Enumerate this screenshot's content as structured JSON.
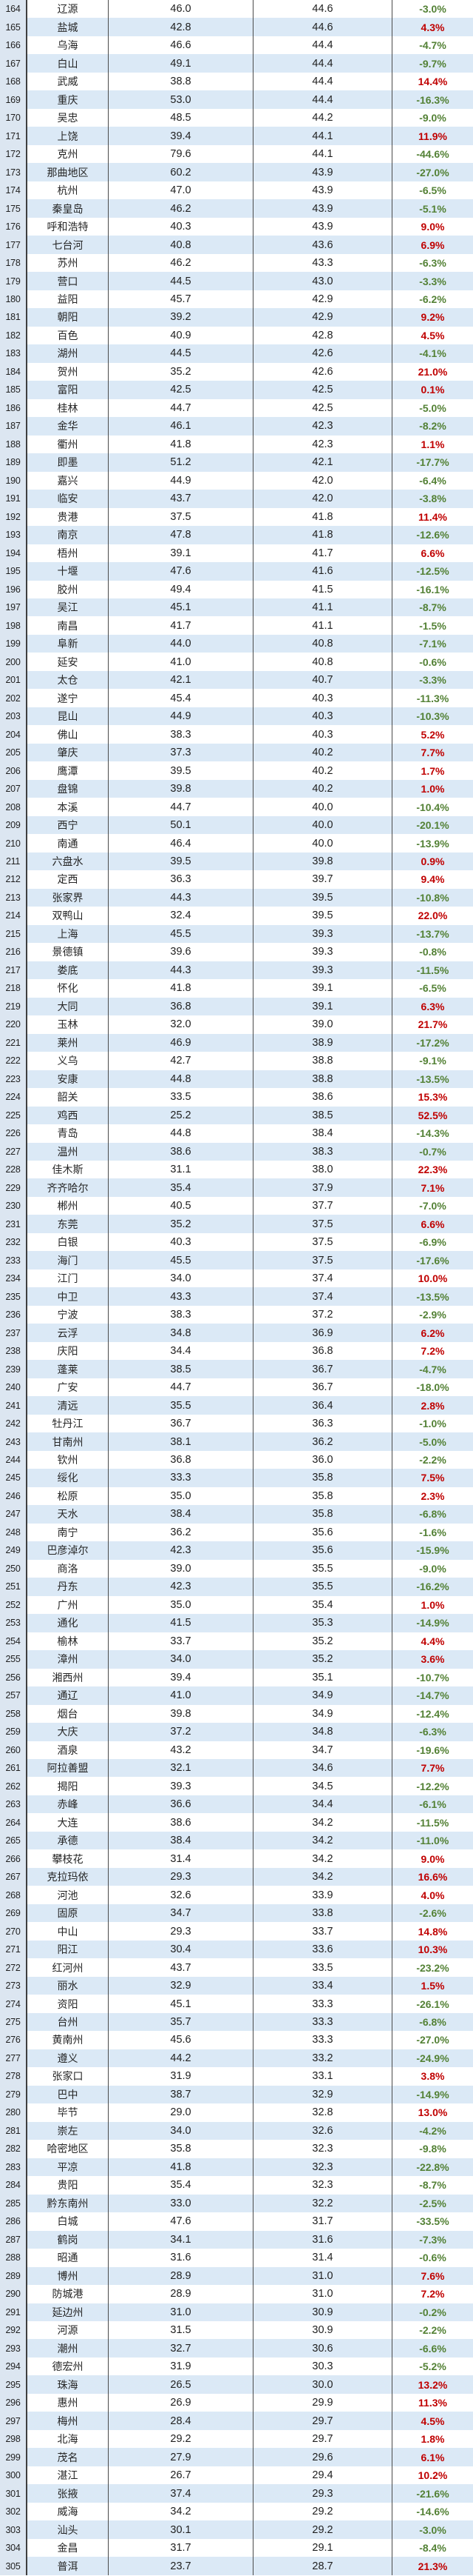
{
  "colors": {
    "positive_change": "#c00000",
    "negative_change": "#538135",
    "band_fill": "#dbe9f6",
    "rank_column_fill": "#dce6f1",
    "border": "#3f3f3f",
    "text": "#1f1f1f"
  },
  "chart_data": {
    "type": "table",
    "columns": [
      "rank",
      "city",
      "value_current",
      "value_reference",
      "change_pct"
    ],
    "legend": "green = negative change, red bold = positive change; banded rows alternate white / light blue; leftmost rank column frozen with blue fill",
    "rows": [
      [
        164,
        "辽源",
        "46.0",
        "44.6",
        "-3.0%"
      ],
      [
        165,
        "盐城",
        "42.8",
        "44.6",
        "4.3%"
      ],
      [
        166,
        "乌海",
        "46.6",
        "44.4",
        "-4.7%"
      ],
      [
        167,
        "白山",
        "49.1",
        "44.4",
        "-9.7%"
      ],
      [
        168,
        "武威",
        "38.8",
        "44.4",
        "14.4%"
      ],
      [
        169,
        "重庆",
        "53.0",
        "44.4",
        "-16.3%"
      ],
      [
        170,
        "吴忠",
        "48.5",
        "44.2",
        "-9.0%"
      ],
      [
        171,
        "上饶",
        "39.4",
        "44.1",
        "11.9%"
      ],
      [
        172,
        "克州",
        "79.6",
        "44.1",
        "-44.6%"
      ],
      [
        173,
        "那曲地区",
        "60.2",
        "43.9",
        "-27.0%"
      ],
      [
        174,
        "杭州",
        "47.0",
        "43.9",
        "-6.5%"
      ],
      [
        175,
        "秦皇岛",
        "46.2",
        "43.9",
        "-5.1%"
      ],
      [
        176,
        "呼和浩特",
        "40.3",
        "43.9",
        "9.0%"
      ],
      [
        177,
        "七台河",
        "40.8",
        "43.6",
        "6.9%"
      ],
      [
        178,
        "苏州",
        "46.2",
        "43.3",
        "-6.3%"
      ],
      [
        179,
        "营口",
        "44.5",
        "43.0",
        "-3.3%"
      ],
      [
        180,
        "益阳",
        "45.7",
        "42.9",
        "-6.2%"
      ],
      [
        181,
        "朝阳",
        "39.2",
        "42.9",
        "9.2%"
      ],
      [
        182,
        "百色",
        "40.9",
        "42.8",
        "4.5%"
      ],
      [
        183,
        "湖州",
        "44.5",
        "42.6",
        "-4.1%"
      ],
      [
        184,
        "贺州",
        "35.2",
        "42.6",
        "21.0%"
      ],
      [
        185,
        "富阳",
        "42.5",
        "42.5",
        "0.1%"
      ],
      [
        186,
        "桂林",
        "44.7",
        "42.5",
        "-5.0%"
      ],
      [
        187,
        "金华",
        "46.1",
        "42.3",
        "-8.2%"
      ],
      [
        188,
        "衢州",
        "41.8",
        "42.3",
        "1.1%"
      ],
      [
        189,
        "即墨",
        "51.2",
        "42.1",
        "-17.7%"
      ],
      [
        190,
        "嘉兴",
        "44.9",
        "42.0",
        "-6.4%"
      ],
      [
        191,
        "临安",
        "43.7",
        "42.0",
        "-3.8%"
      ],
      [
        192,
        "贵港",
        "37.5",
        "41.8",
        "11.4%"
      ],
      [
        193,
        "南京",
        "47.8",
        "41.8",
        "-12.6%"
      ],
      [
        194,
        "梧州",
        "39.1",
        "41.7",
        "6.6%"
      ],
      [
        195,
        "十堰",
        "47.6",
        "41.6",
        "-12.5%"
      ],
      [
        196,
        "胶州",
        "49.4",
        "41.5",
        "-16.1%"
      ],
      [
        197,
        "吴江",
        "45.1",
        "41.1",
        "-8.7%"
      ],
      [
        198,
        "南昌",
        "41.7",
        "41.1",
        "-1.5%"
      ],
      [
        199,
        "阜新",
        "44.0",
        "40.8",
        "-7.1%"
      ],
      [
        200,
        "延安",
        "41.0",
        "40.8",
        "-0.6%"
      ],
      [
        201,
        "太仓",
        "42.1",
        "40.7",
        "-3.3%"
      ],
      [
        202,
        "遂宁",
        "45.4",
        "40.3",
        "-11.3%"
      ],
      [
        203,
        "昆山",
        "44.9",
        "40.3",
        "-10.3%"
      ],
      [
        204,
        "佛山",
        "38.3",
        "40.3",
        "5.2%"
      ],
      [
        205,
        "肇庆",
        "37.3",
        "40.2",
        "7.7%"
      ],
      [
        206,
        "鹰潭",
        "39.5",
        "40.2",
        "1.7%"
      ],
      [
        207,
        "盘锦",
        "39.8",
        "40.2",
        "1.0%"
      ],
      [
        208,
        "本溪",
        "44.7",
        "40.0",
        "-10.4%"
      ],
      [
        209,
        "西宁",
        "50.1",
        "40.0",
        "-20.1%"
      ],
      [
        210,
        "南通",
        "46.4",
        "40.0",
        "-13.9%"
      ],
      [
        211,
        "六盘水",
        "39.5",
        "39.8",
        "0.9%"
      ],
      [
        212,
        "定西",
        "36.3",
        "39.7",
        "9.4%"
      ],
      [
        213,
        "张家界",
        "44.3",
        "39.5",
        "-10.8%"
      ],
      [
        214,
        "双鸭山",
        "32.4",
        "39.5",
        "22.0%"
      ],
      [
        215,
        "上海",
        "45.5",
        "39.3",
        "-13.7%"
      ],
      [
        216,
        "景德镇",
        "39.6",
        "39.3",
        "-0.8%"
      ],
      [
        217,
        "娄底",
        "44.3",
        "39.3",
        "-11.5%"
      ],
      [
        218,
        "怀化",
        "41.8",
        "39.1",
        "-6.5%"
      ],
      [
        219,
        "大同",
        "36.8",
        "39.1",
        "6.3%"
      ],
      [
        220,
        "玉林",
        "32.0",
        "39.0",
        "21.7%"
      ],
      [
        221,
        "莱州",
        "46.9",
        "38.9",
        "-17.2%"
      ],
      [
        222,
        "义乌",
        "42.7",
        "38.8",
        "-9.1%"
      ],
      [
        223,
        "安康",
        "44.8",
        "38.8",
        "-13.5%"
      ],
      [
        224,
        "韶关",
        "33.5",
        "38.6",
        "15.3%"
      ],
      [
        225,
        "鸡西",
        "25.2",
        "38.5",
        "52.5%"
      ],
      [
        226,
        "青岛",
        "44.8",
        "38.4",
        "-14.3%"
      ],
      [
        227,
        "温州",
        "38.6",
        "38.3",
        "-0.7%"
      ],
      [
        228,
        "佳木斯",
        "31.1",
        "38.0",
        "22.3%"
      ],
      [
        229,
        "齐齐哈尔",
        "35.4",
        "37.9",
        "7.1%"
      ],
      [
        230,
        "郴州",
        "40.5",
        "37.7",
        "-7.0%"
      ],
      [
        231,
        "东莞",
        "35.2",
        "37.5",
        "6.6%"
      ],
      [
        232,
        "白银",
        "40.3",
        "37.5",
        "-6.9%"
      ],
      [
        233,
        "海门",
        "45.5",
        "37.5",
        "-17.6%"
      ],
      [
        234,
        "江门",
        "34.0",
        "37.4",
        "10.0%"
      ],
      [
        235,
        "中卫",
        "43.3",
        "37.4",
        "-13.5%"
      ],
      [
        236,
        "宁波",
        "38.3",
        "37.2",
        "-2.9%"
      ],
      [
        237,
        "云浮",
        "34.8",
        "36.9",
        "6.2%"
      ],
      [
        238,
        "庆阳",
        "34.4",
        "36.8",
        "7.2%"
      ],
      [
        239,
        "蓬莱",
        "38.5",
        "36.7",
        "-4.7%"
      ],
      [
        240,
        "广安",
        "44.7",
        "36.7",
        "-18.0%"
      ],
      [
        241,
        "清远",
        "35.5",
        "36.4",
        "2.8%"
      ],
      [
        242,
        "牡丹江",
        "36.7",
        "36.3",
        "-1.0%"
      ],
      [
        243,
        "甘南州",
        "38.1",
        "36.2",
        "-5.0%"
      ],
      [
        244,
        "钦州",
        "36.8",
        "36.0",
        "-2.2%"
      ],
      [
        245,
        "绥化",
        "33.3",
        "35.8",
        "7.5%"
      ],
      [
        246,
        "松原",
        "35.0",
        "35.8",
        "2.3%"
      ],
      [
        247,
        "天水",
        "38.4",
        "35.8",
        "-6.8%"
      ],
      [
        248,
        "南宁",
        "36.2",
        "35.6",
        "-1.6%"
      ],
      [
        249,
        "巴彦淖尔",
        "42.3",
        "35.6",
        "-15.9%"
      ],
      [
        250,
        "商洛",
        "39.0",
        "35.5",
        "-9.0%"
      ],
      [
        251,
        "丹东",
        "42.3",
        "35.5",
        "-16.2%"
      ],
      [
        252,
        "广州",
        "35.0",
        "35.4",
        "1.0%"
      ],
      [
        253,
        "通化",
        "41.5",
        "35.3",
        "-14.9%"
      ],
      [
        254,
        "榆林",
        "33.7",
        "35.2",
        "4.4%"
      ],
      [
        255,
        "漳州",
        "34.0",
        "35.2",
        "3.6%"
      ],
      [
        256,
        "湘西州",
        "39.4",
        "35.1",
        "-10.7%"
      ],
      [
        257,
        "通辽",
        "41.0",
        "34.9",
        "-14.7%"
      ],
      [
        258,
        "烟台",
        "39.8",
        "34.9",
        "-12.4%"
      ],
      [
        259,
        "大庆",
        "37.2",
        "34.8",
        "-6.3%"
      ],
      [
        260,
        "酒泉",
        "43.2",
        "34.7",
        "-19.6%"
      ],
      [
        261,
        "阿拉善盟",
        "32.1",
        "34.6",
        "7.7%"
      ],
      [
        262,
        "揭阳",
        "39.3",
        "34.5",
        "-12.2%"
      ],
      [
        263,
        "赤峰",
        "36.6",
        "34.4",
        "-6.1%"
      ],
      [
        264,
        "大连",
        "38.6",
        "34.2",
        "-11.5%"
      ],
      [
        265,
        "承德",
        "38.4",
        "34.2",
        "-11.0%"
      ],
      [
        266,
        "攀枝花",
        "31.4",
        "34.2",
        "9.0%"
      ],
      [
        267,
        "克拉玛依",
        "29.3",
        "34.2",
        "16.6%"
      ],
      [
        268,
        "河池",
        "32.6",
        "33.9",
        "4.0%"
      ],
      [
        269,
        "固原",
        "34.7",
        "33.8",
        "-2.6%"
      ],
      [
        270,
        "中山",
        "29.3",
        "33.7",
        "14.8%"
      ],
      [
        271,
        "阳江",
        "30.4",
        "33.6",
        "10.3%"
      ],
      [
        272,
        "红河州",
        "43.7",
        "33.5",
        "-23.2%"
      ],
      [
        273,
        "丽水",
        "32.9",
        "33.4",
        "1.5%"
      ],
      [
        274,
        "资阳",
        "45.1",
        "33.3",
        "-26.1%"
      ],
      [
        275,
        "台州",
        "35.7",
        "33.3",
        "-6.8%"
      ],
      [
        276,
        "黄南州",
        "45.6",
        "33.3",
        "-27.0%"
      ],
      [
        277,
        "遵义",
        "44.2",
        "33.2",
        "-24.9%"
      ],
      [
        278,
        "张家口",
        "31.9",
        "33.1",
        "3.8%"
      ],
      [
        279,
        "巴中",
        "38.7",
        "32.9",
        "-14.9%"
      ],
      [
        280,
        "毕节",
        "29.0",
        "32.8",
        "13.0%"
      ],
      [
        281,
        "崇左",
        "34.0",
        "32.6",
        "-4.2%"
      ],
      [
        282,
        "哈密地区",
        "35.8",
        "32.3",
        "-9.8%"
      ],
      [
        283,
        "平凉",
        "41.8",
        "32.3",
        "-22.8%"
      ],
      [
        284,
        "贵阳",
        "35.4",
        "32.3",
        "-8.7%"
      ],
      [
        285,
        "黔东南州",
        "33.0",
        "32.2",
        "-2.5%"
      ],
      [
        286,
        "白城",
        "47.6",
        "31.7",
        "-33.5%"
      ],
      [
        287,
        "鹤岗",
        "34.1",
        "31.6",
        "-7.3%"
      ],
      [
        288,
        "昭通",
        "31.6",
        "31.4",
        "-0.6%"
      ],
      [
        289,
        "博州",
        "28.9",
        "31.0",
        "7.6%"
      ],
      [
        290,
        "防城港",
        "28.9",
        "31.0",
        "7.2%"
      ],
      [
        291,
        "延边州",
        "31.0",
        "30.9",
        "-0.2%"
      ],
      [
        292,
        "河源",
        "31.5",
        "30.9",
        "-2.2%"
      ],
      [
        293,
        "潮州",
        "32.7",
        "30.6",
        "-6.6%"
      ],
      [
        294,
        "德宏州",
        "31.9",
        "30.3",
        "-5.2%"
      ],
      [
        295,
        "珠海",
        "26.5",
        "30.0",
        "13.2%"
      ],
      [
        296,
        "惠州",
        "26.9",
        "29.9",
        "11.3%"
      ],
      [
        297,
        "梅州",
        "28.4",
        "29.7",
        "4.5%"
      ],
      [
        298,
        "北海",
        "29.2",
        "29.7",
        "1.8%"
      ],
      [
        299,
        "茂名",
        "27.9",
        "29.6",
        "6.1%"
      ],
      [
        300,
        "湛江",
        "26.7",
        "29.4",
        "10.2%"
      ],
      [
        301,
        "张掖",
        "37.4",
        "29.3",
        "-21.6%"
      ],
      [
        302,
        "威海",
        "34.2",
        "29.2",
        "-14.6%"
      ],
      [
        303,
        "汕头",
        "30.1",
        "29.2",
        "-3.0%"
      ],
      [
        304,
        "金昌",
        "31.7",
        "29.1",
        "-8.4%"
      ],
      [
        305,
        "普洱",
        "23.7",
        "28.7",
        "21.3%"
      ]
    ]
  }
}
